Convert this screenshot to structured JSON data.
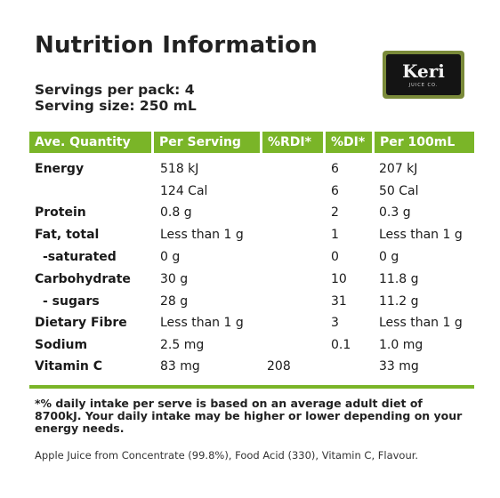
{
  "title": "Nutrition Information",
  "brand": {
    "name": "Keri",
    "sub": "JUICE CO."
  },
  "servings_per_pack": "Servings per pack: 4",
  "serving_size": "Serving size: 250 mL",
  "header": {
    "col1": "Ave. Quantity",
    "col2": "Per Serving",
    "col3": "%RDI*",
    "col4": "%DI*",
    "col5": "Per 100mL"
  },
  "rows": [
    {
      "label": "Energy",
      "per_serving": "518 kJ",
      "rdi": "",
      "di": "6",
      "per_100ml": "207 kJ"
    },
    {
      "label": "",
      "per_serving": "124 Cal",
      "rdi": "",
      "di": "6",
      "per_100ml": "50 Cal"
    },
    {
      "label": "Protein",
      "per_serving": "0.8 g",
      "rdi": "",
      "di": "2",
      "per_100ml": "0.3 g"
    },
    {
      "label": "Fat, total",
      "per_serving": "Less than 1 g",
      "rdi": "",
      "di": "1",
      "per_100ml": "Less than 1 g"
    },
    {
      "label": "-saturated",
      "per_serving": "0 g",
      "rdi": "",
      "di": "0",
      "per_100ml": "0 g"
    },
    {
      "label": "Carbohydrate",
      "per_serving": "30 g",
      "rdi": "",
      "di": "10",
      "per_100ml": "11.8 g"
    },
    {
      "label": "- sugars",
      "per_serving": "28 g",
      "rdi": "",
      "di": "31",
      "per_100ml": "11.2 g"
    },
    {
      "label": "Dietary Fibre",
      "per_serving": "Less than 1 g",
      "rdi": "",
      "di": "3",
      "per_100ml": "Less than 1 g"
    },
    {
      "label": "Sodium",
      "per_serving": "2.5 mg",
      "rdi": "",
      "di": "0.1",
      "per_100ml": "1.0 mg"
    },
    {
      "label": "Vitamin C",
      "per_serving": "83 mg",
      "rdi": "208",
      "di": "",
      "per_100ml": "33 mg"
    }
  ],
  "footnote": "*% daily intake per serve is based on an average adult diet of 8700kJ. Your daily intake may be higher or lower depending on your energy needs.",
  "ingredients": "Apple Juice from Concentrate (99.8%), Food Acid (330), Vitamin C, Flavour.",
  "colors": {
    "accent": "#7ab528",
    "text": "#222222"
  }
}
